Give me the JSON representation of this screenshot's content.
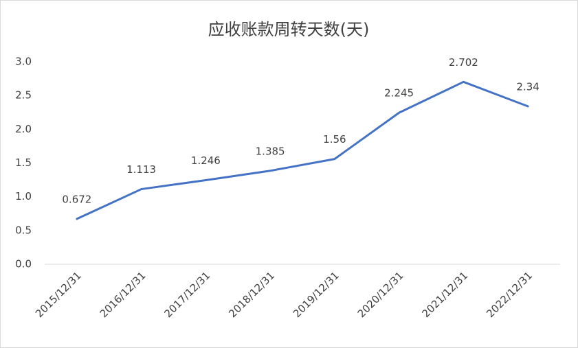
{
  "chart_data": {
    "type": "line",
    "title": "应收账款周转天数(天)",
    "categories": [
      "2015/12/31",
      "2016/12/31",
      "2017/12/31",
      "2018/12/31",
      "2019/12/31",
      "2020/12/31",
      "2021/12/31",
      "2022/12/31"
    ],
    "values": [
      0.672,
      1.113,
      1.246,
      1.385,
      1.56,
      2.245,
      2.702,
      2.34
    ],
    "color": "#4472c4",
    "ylim": [
      0,
      3
    ],
    "yticks": [
      {
        "value": 0,
        "label": "0.0"
      },
      0.5,
      {
        "value": 1,
        "label": "1.0"
      },
      1.5,
      {
        "value": 2,
        "label": "2.0"
      },
      2.5,
      {
        "value": 3,
        "label": "3.0"
      }
    ],
    "grid": false
  }
}
